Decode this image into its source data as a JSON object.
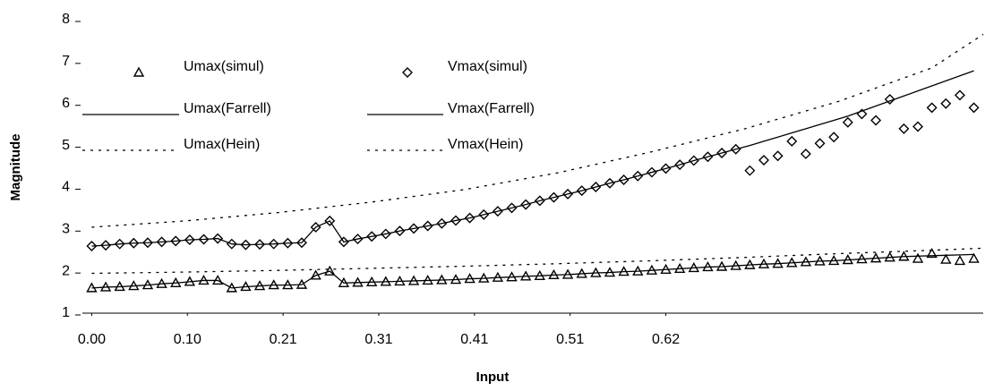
{
  "chart_data": {
    "type": "line",
    "xlabel": "Input",
    "ylabel": "Magnitude",
    "xlim": [
      -0.01,
      0.955
    ],
    "ylim": [
      1,
      8
    ],
    "yticks": [
      1,
      2,
      3,
      4,
      5,
      6,
      7,
      8
    ],
    "xticks": [
      {
        "value": 0,
        "label": "0.00"
      },
      {
        "value": 0.1025,
        "label": "0.10"
      },
      {
        "value": 0.205,
        "label": "0.21"
      },
      {
        "value": 0.3075,
        "label": "0.31"
      },
      {
        "value": 0.41,
        "label": "0.41"
      },
      {
        "value": 0.5125,
        "label": "0.51"
      },
      {
        "value": 0.615,
        "label": "0.62"
      }
    ],
    "legend": "upper left",
    "grid": false,
    "x": [
      0,
      0.015,
      0.03,
      0.045,
      0.06,
      0.075,
      0.09,
      0.105,
      0.12,
      0.135,
      0.15,
      0.165,
      0.18,
      0.195,
      0.21,
      0.225,
      0.24,
      0.255,
      0.27,
      0.285,
      0.3,
      0.315,
      0.33,
      0.345,
      0.36,
      0.375,
      0.39,
      0.405,
      0.42,
      0.435,
      0.45,
      0.465,
      0.48,
      0.495,
      0.51,
      0.525,
      0.54,
      0.555,
      0.57,
      0.585,
      0.6,
      0.615,
      0.63,
      0.645,
      0.66,
      0.675,
      0.69,
      0.705,
      0.72,
      0.735,
      0.75,
      0.765,
      0.78,
      0.795,
      0.81,
      0.825,
      0.84,
      0.855,
      0.87,
      0.885,
      0.9,
      0.915,
      0.93,
      0.945
    ],
    "series": [
      {
        "name": "Umax(simul)",
        "color": "#000000",
        "marker": "triangle",
        "line": "none",
        "values": [
          1.6,
          1.62,
          1.63,
          1.65,
          1.67,
          1.7,
          1.72,
          1.75,
          1.78,
          1.78,
          1.6,
          1.63,
          1.65,
          1.67,
          1.67,
          1.68,
          1.9,
          2.0,
          1.72,
          1.73,
          1.74,
          1.75,
          1.76,
          1.77,
          1.78,
          1.79,
          1.8,
          1.82,
          1.83,
          1.85,
          1.86,
          1.88,
          1.89,
          1.91,
          1.92,
          1.94,
          1.96,
          1.97,
          1.99,
          2.0,
          2.02,
          2.04,
          2.06,
          2.08,
          2.1,
          2.11,
          2.13,
          2.15,
          2.17,
          2.18,
          2.2,
          2.22,
          2.24,
          2.25,
          2.27,
          2.29,
          2.31,
          2.33,
          2.35,
          2.3,
          2.42,
          2.28,
          2.25,
          2.3
        ]
      },
      {
        "name": "Vmax(simul)",
        "color": "#000000",
        "marker": "diamond",
        "line": "none",
        "values": [
          2.6,
          2.62,
          2.65,
          2.67,
          2.68,
          2.7,
          2.72,
          2.75,
          2.76,
          2.78,
          2.65,
          2.63,
          2.64,
          2.65,
          2.67,
          2.68,
          3.05,
          3.2,
          2.7,
          2.77,
          2.83,
          2.89,
          2.96,
          3.02,
          3.08,
          3.14,
          3.21,
          3.27,
          3.35,
          3.43,
          3.51,
          3.59,
          3.68,
          3.76,
          3.84,
          3.92,
          4.01,
          4.1,
          4.18,
          4.27,
          4.36,
          4.45,
          4.54,
          4.64,
          4.73,
          4.82,
          4.91,
          4.4,
          4.65,
          4.75,
          5.1,
          4.8,
          5.05,
          5.2,
          5.55,
          5.75,
          5.6,
          6.1,
          5.4,
          5.45,
          5.9,
          6.0,
          6.2,
          5.9
        ]
      },
      {
        "name": "Umax(Farrell)",
        "color": "#000000",
        "marker": "none",
        "line": "solid",
        "values": [
          1.6,
          1.62,
          1.63,
          1.65,
          1.67,
          1.7,
          1.72,
          1.75,
          1.78,
          1.78,
          1.6,
          1.63,
          1.65,
          1.67,
          1.67,
          1.68,
          1.9,
          2.0,
          1.72,
          1.73,
          1.74,
          1.75,
          1.76,
          1.77,
          1.78,
          1.79,
          1.8,
          1.82,
          1.83,
          1.85,
          1.86,
          1.88,
          1.89,
          1.91,
          1.92,
          1.94,
          1.96,
          1.97,
          1.99,
          2.0,
          2.02,
          2.04,
          2.06,
          2.08,
          2.1,
          2.11,
          2.13,
          2.15,
          2.17,
          2.18,
          2.2,
          2.22,
          2.24,
          2.25,
          2.27,
          2.29,
          2.31,
          2.33,
          2.35,
          2.36,
          2.37,
          2.38,
          2.39,
          2.4
        ]
      },
      {
        "name": "Vmax(Farrell)",
        "color": "#000000",
        "marker": "none",
        "line": "solid",
        "values": [
          2.6,
          2.62,
          2.65,
          2.67,
          2.68,
          2.7,
          2.72,
          2.75,
          2.76,
          2.78,
          2.65,
          2.63,
          2.64,
          2.65,
          2.67,
          2.68,
          3.05,
          3.2,
          2.7,
          2.77,
          2.83,
          2.89,
          2.96,
          3.02,
          3.08,
          3.14,
          3.21,
          3.27,
          3.35,
          3.43,
          3.51,
          3.59,
          3.68,
          3.76,
          3.84,
          3.92,
          4.01,
          4.1,
          4.18,
          4.27,
          4.36,
          4.45,
          4.54,
          4.64,
          4.73,
          4.82,
          4.91,
          5.0,
          5.1,
          5.2,
          5.3,
          5.4,
          5.5,
          5.6,
          5.7,
          5.82,
          5.94,
          6.06,
          6.18,
          6.3,
          6.42,
          6.54,
          6.66,
          6.78
        ]
      },
      {
        "name": "Umax(Hein)",
        "color": "#000000",
        "marker": "none",
        "line": "dotted",
        "x": [
          0,
          0.1,
          0.2,
          0.3,
          0.4,
          0.5,
          0.6,
          0.7,
          0.8,
          0.9,
          0.955
        ],
        "values": [
          1.95,
          1.98,
          2.02,
          2.07,
          2.12,
          2.18,
          2.25,
          2.33,
          2.42,
          2.5,
          2.55
        ]
      },
      {
        "name": "Vmax(Hein)",
        "color": "#000000",
        "marker": "none",
        "line": "dotted",
        "x": [
          0,
          0.1,
          0.2,
          0.3,
          0.4,
          0.5,
          0.6,
          0.7,
          0.8,
          0.9,
          0.955
        ],
        "values": [
          3.05,
          3.2,
          3.4,
          3.65,
          3.95,
          4.35,
          4.85,
          5.4,
          6.05,
          6.85,
          7.65
        ]
      }
    ]
  }
}
